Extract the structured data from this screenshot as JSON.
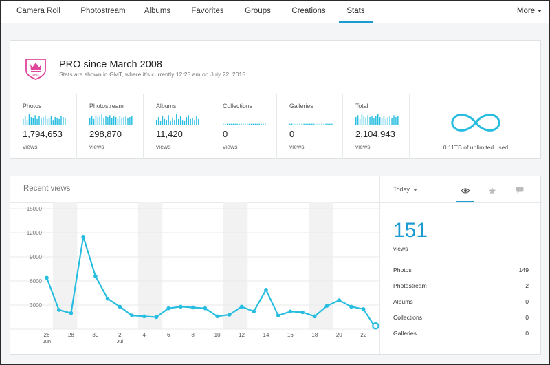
{
  "nav": {
    "tabs": [
      "Camera Roll",
      "Photostream",
      "Albums",
      "Favorites",
      "Groups",
      "Creations",
      "Stats"
    ],
    "active_tab": "Stats",
    "more_label": "More"
  },
  "pro": {
    "badge_text": "PRO",
    "title": "PRO since March 2008",
    "subtitle": "Stats are shown in GMT, where it's currently 12:25 am on July 22, 2015"
  },
  "metrics": [
    {
      "label": "Photos",
      "value": "1,794,653",
      "unit": "views",
      "spark": [
        6,
        9,
        5,
        11,
        8,
        7,
        10,
        6,
        9,
        7,
        8,
        10,
        6,
        7,
        9,
        5,
        8,
        7,
        6,
        9,
        8,
        7
      ]
    },
    {
      "label": "Photostream",
      "value": "298,870",
      "unit": "views",
      "spark": [
        7,
        9,
        6,
        10,
        8,
        9,
        11,
        7,
        9,
        8,
        10,
        7,
        9,
        8,
        6,
        9,
        7,
        8,
        9,
        7,
        8,
        9
      ]
    },
    {
      "label": "Albums",
      "value": "11,420",
      "unit": "views",
      "spark": [
        5,
        8,
        4,
        9,
        6,
        5,
        10,
        4,
        7,
        5,
        11,
        6,
        9,
        5,
        4,
        8,
        10,
        6,
        7,
        5,
        9,
        6
      ]
    },
    {
      "label": "Collections",
      "value": "0",
      "unit": "views",
      "spark": [
        1,
        1,
        1,
        1,
        1,
        1,
        1,
        1,
        1,
        1,
        1,
        1,
        1,
        1,
        1,
        1,
        1,
        1,
        1,
        1,
        1,
        1
      ]
    },
    {
      "label": "Galleries",
      "value": "0",
      "unit": "views",
      "spark": [
        1,
        1,
        1,
        1,
        1,
        1,
        1,
        1,
        1,
        1,
        1,
        1,
        1,
        1,
        1,
        1,
        1,
        1,
        1,
        1,
        1,
        1
      ]
    },
    {
      "label": "Total",
      "value": "2,104,943",
      "unit": "views",
      "spark": [
        8,
        10,
        6,
        11,
        9,
        7,
        10,
        8,
        9,
        7,
        9,
        11,
        8,
        7,
        9,
        6,
        8,
        9,
        7,
        10,
        8,
        9
      ]
    }
  ],
  "storage": {
    "usage_text": "0.11TB of unlimited used"
  },
  "recent": {
    "title": "Recent views",
    "range_label": "Today",
    "total": "151",
    "total_label": "views",
    "breakdown": [
      {
        "label": "Photos",
        "value": "149"
      },
      {
        "label": "Photostream",
        "value": "2"
      },
      {
        "label": "Albums",
        "value": "0"
      },
      {
        "label": "Collections",
        "value": "0"
      },
      {
        "label": "Galleries",
        "value": "0"
      }
    ]
  },
  "colors": {
    "accent": "#1c9bd0",
    "line": "#27bde0",
    "badge": "#e0479c"
  },
  "chart_data": {
    "type": "line",
    "title": "",
    "x_ticks": [
      "26",
      "28",
      "30",
      "2",
      "4",
      "6",
      "8",
      "10",
      "12",
      "14",
      "16",
      "18",
      "20",
      "22"
    ],
    "x_month_labels": [
      {
        "tick": "26",
        "month": "Jun"
      },
      {
        "tick": "2",
        "month": "Jul"
      }
    ],
    "ylim": [
      0,
      15000
    ],
    "y_ticks": [
      "15000",
      "12000",
      "9000",
      "6000",
      "3000"
    ],
    "grid": true,
    "weekend_bands": [
      [
        "Jun 27",
        "Jun 28"
      ],
      [
        "Jul 4",
        "Jul 5"
      ],
      [
        "Jul 11",
        "Jul 12"
      ],
      [
        "Jul 18",
        "Jul 19"
      ]
    ],
    "series": [
      {
        "x": [
          "Jun 26",
          "Jun 27",
          "Jun 28",
          "Jun 29",
          "Jun 30",
          "Jul 1",
          "Jul 2",
          "Jul 3",
          "Jul 4",
          "Jul 5",
          "Jul 6",
          "Jul 7",
          "Jul 8",
          "Jul 9",
          "Jul 10",
          "Jul 11",
          "Jul 12",
          "Jul 13",
          "Jul 14",
          "Jul 15",
          "Jul 16",
          "Jul 17",
          "Jul 18",
          "Jul 19",
          "Jul 20",
          "Jul 21",
          "Jul 22",
          "Jul 23"
        ],
        "values": [
          6400,
          2400,
          2000,
          11500,
          6600,
          3800,
          2800,
          1700,
          1600,
          1500,
          2600,
          2800,
          2700,
          2600,
          1600,
          1800,
          2800,
          2200,
          4900,
          1700,
          2200,
          2100,
          1600,
          2900,
          3600,
          2800,
          2500,
          151
        ]
      }
    ]
  }
}
